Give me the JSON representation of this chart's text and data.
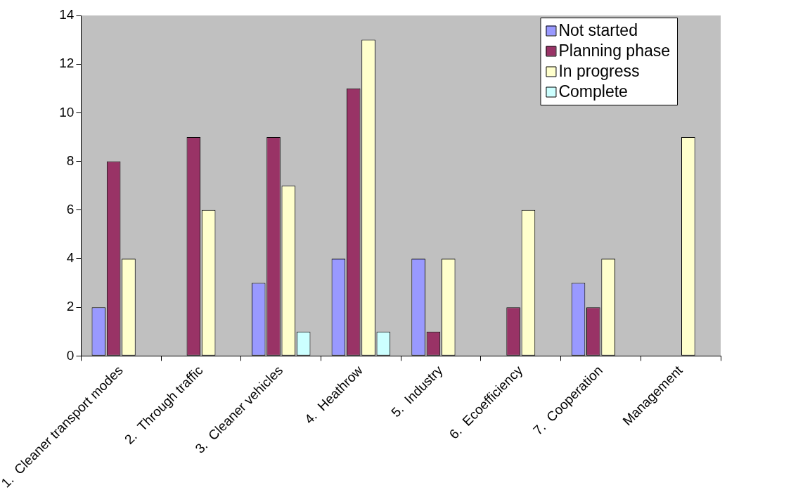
{
  "chart_data": {
    "type": "bar",
    "categories": [
      "1.  Cleaner transport modes",
      "2.  Through traffic",
      "3.  Cleaner vehicles",
      "4.  Heathrow",
      "5.  Industry",
      "6.  Ecoefficiency",
      "7.  Cooperation",
      "Management"
    ],
    "series": [
      {
        "name": "Not started",
        "color": "#9999ff",
        "values": [
          2,
          0,
          3,
          4,
          4,
          0,
          3,
          0
        ]
      },
      {
        "name": "Planning phase",
        "color": "#993366",
        "values": [
          8,
          9,
          9,
          11,
          1,
          2,
          2,
          0
        ]
      },
      {
        "name": "In progress",
        "color": "#ffffcc",
        "values": [
          4,
          6,
          7,
          13,
          4,
          6,
          4,
          9
        ]
      },
      {
        "name": "Complete",
        "color": "#ccffff",
        "values": [
          0,
          0,
          1,
          1,
          0,
          0,
          0,
          0
        ]
      }
    ],
    "ylim": [
      0,
      14
    ],
    "yticks": [
      0,
      2,
      4,
      6,
      8,
      10,
      12,
      14
    ],
    "grid": false,
    "legend": "top right"
  }
}
